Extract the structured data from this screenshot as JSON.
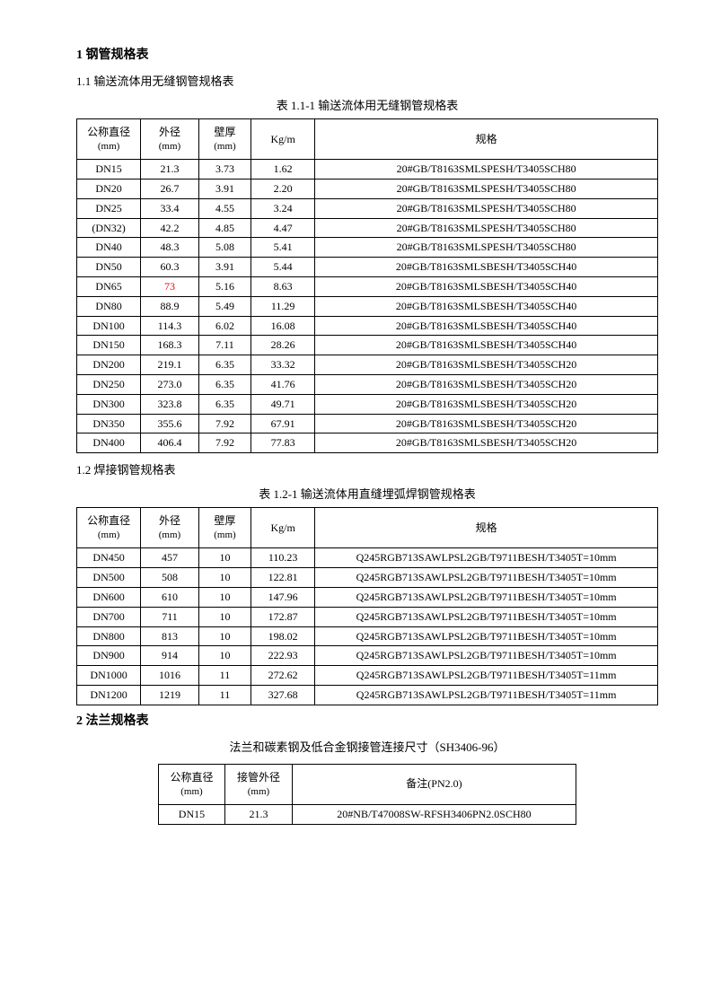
{
  "section1": {
    "title": "1 钢管规格表",
    "sub1": {
      "title": "1.1 输送流体用无缝钢管规格表",
      "caption": "表 1.1-1 输送流体用无缝钢管规格表",
      "headers": {
        "h1": "公称直径",
        "h1_unit": "(mm)",
        "h2": "外径",
        "h2_unit": "(mm)",
        "h3": "壁厚",
        "h3_unit": "(mm)",
        "h4": "Kg/m",
        "h5": "规格"
      },
      "rows": [
        {
          "c1": "DN15",
          "c2": "21.3",
          "c2_red": false,
          "c3": "3.73",
          "c4": "1.62",
          "c5": "20#GB/T8163SMLSPESH/T3405SCH80"
        },
        {
          "c1": "DN20",
          "c2": "26.7",
          "c2_red": false,
          "c3": "3.91",
          "c4": "2.20",
          "c5": "20#GB/T8163SMLSPESH/T3405SCH80"
        },
        {
          "c1": "DN25",
          "c2": "33.4",
          "c2_red": false,
          "c3": "4.55",
          "c4": "3.24",
          "c5": "20#GB/T8163SMLSPESH/T3405SCH80"
        },
        {
          "c1": "(DN32)",
          "c2": "42.2",
          "c2_red": false,
          "c3": "4.85",
          "c4": "4.47",
          "c5": "20#GB/T8163SMLSPESH/T3405SCH80"
        },
        {
          "c1": "DN40",
          "c2": "48.3",
          "c2_red": false,
          "c3": "5.08",
          "c4": "5.41",
          "c5": "20#GB/T8163SMLSPESH/T3405SCH80"
        },
        {
          "c1": "DN50",
          "c2": "60.3",
          "c2_red": false,
          "c3": "3.91",
          "c4": "5.44",
          "c5": "20#GB/T8163SMLSBESH/T3405SCH40"
        },
        {
          "c1": "DN65",
          "c2": "73",
          "c2_red": true,
          "c3": "5.16",
          "c4": "8.63",
          "c5": "20#GB/T8163SMLSBESH/T3405SCH40"
        },
        {
          "c1": "DN80",
          "c2": "88.9",
          "c2_red": false,
          "c3": "5.49",
          "c4": "11.29",
          "c5": "20#GB/T8163SMLSBESH/T3405SCH40"
        },
        {
          "c1": "DN100",
          "c2": "114.3",
          "c2_red": false,
          "c3": "6.02",
          "c4": "16.08",
          "c5": "20#GB/T8163SMLSBESH/T3405SCH40"
        },
        {
          "c1": "DN150",
          "c2": "168.3",
          "c2_red": false,
          "c3": "7.11",
          "c4": "28.26",
          "c5": "20#GB/T8163SMLSBESH/T3405SCH40"
        },
        {
          "c1": "DN200",
          "c2": "219.1",
          "c2_red": false,
          "c3": "6.35",
          "c4": "33.32",
          "c5": "20#GB/T8163SMLSBESH/T3405SCH20"
        },
        {
          "c1": "DN250",
          "c2": "273.0",
          "c2_red": false,
          "c3": "6.35",
          "c4": "41.76",
          "c5": "20#GB/T8163SMLSBESH/T3405SCH20"
        },
        {
          "c1": "DN300",
          "c2": "323.8",
          "c2_red": false,
          "c3": "6.35",
          "c4": "49.71",
          "c5": "20#GB/T8163SMLSBESH/T3405SCH20"
        },
        {
          "c1": "DN350",
          "c2": "355.6",
          "c2_red": false,
          "c3": "7.92",
          "c4": "67.91",
          "c5": "20#GB/T8163SMLSBESH/T3405SCH20"
        },
        {
          "c1": "DN400",
          "c2": "406.4",
          "c2_red": false,
          "c3": "7.92",
          "c4": "77.83",
          "c5": "20#GB/T8163SMLSBESH/T3405SCH20"
        }
      ]
    },
    "sub2": {
      "title": "1.2 焊接钢管规格表",
      "caption": "表 1.2-1 输送流体用直缝埋弧焊钢管规格表",
      "headers": {
        "h1": "公称直径",
        "h1_unit": "(mm)",
        "h2": "外径",
        "h2_unit": "(mm)",
        "h3": "壁厚",
        "h3_unit": "(mm)",
        "h4": "Kg/m",
        "h5": "规格"
      },
      "rows": [
        {
          "c1": "DN450",
          "c2": "457",
          "c3": "10",
          "c4": "110.23",
          "c5": "Q245RGB713SAWLPSL2GB/T9711BESH/T3405T=10mm"
        },
        {
          "c1": "DN500",
          "c2": "508",
          "c3": "10",
          "c4": "122.81",
          "c5": "Q245RGB713SAWLPSL2GB/T9711BESH/T3405T=10mm"
        },
        {
          "c1": "DN600",
          "c2": "610",
          "c3": "10",
          "c4": "147.96",
          "c5": "Q245RGB713SAWLPSL2GB/T9711BESH/T3405T=10mm"
        },
        {
          "c1": "DN700",
          "c2": "711",
          "c3": "10",
          "c4": "172.87",
          "c5": "Q245RGB713SAWLPSL2GB/T9711BESH/T3405T=10mm"
        },
        {
          "c1": "DN800",
          "c2": "813",
          "c3": "10",
          "c4": "198.02",
          "c5": "Q245RGB713SAWLPSL2GB/T9711BESH/T3405T=10mm"
        },
        {
          "c1": "DN900",
          "c2": "914",
          "c3": "10",
          "c4": "222.93",
          "c5": "Q245RGB713SAWLPSL2GB/T9711BESH/T3405T=10mm"
        },
        {
          "c1": "DN1000",
          "c2": "1016",
          "c3": "11",
          "c4": "272.62",
          "c5": "Q245RGB713SAWLPSL2GB/T9711BESH/T3405T=11mm"
        },
        {
          "c1": "DN1200",
          "c2": "1219",
          "c3": "11",
          "c4": "327.68",
          "c5": "Q245RGB713SAWLPSL2GB/T9711BESH/T3405T=11mm"
        }
      ]
    }
  },
  "section2": {
    "title": "2 法兰规格表",
    "caption": "法兰和碳素钢及低合金钢接管连接尺寸（SH3406-96）",
    "headers": {
      "h1": "公称直径",
      "h1_unit": "(mm)",
      "h2": "接管外径",
      "h2_unit": "(mm)",
      "h3": "备注(PN2.0)"
    },
    "rows": [
      {
        "c1": "DN15",
        "c2": "21.3",
        "c3": "20#NB/T47008SW-RFSH3406PN2.0SCH80"
      }
    ]
  }
}
